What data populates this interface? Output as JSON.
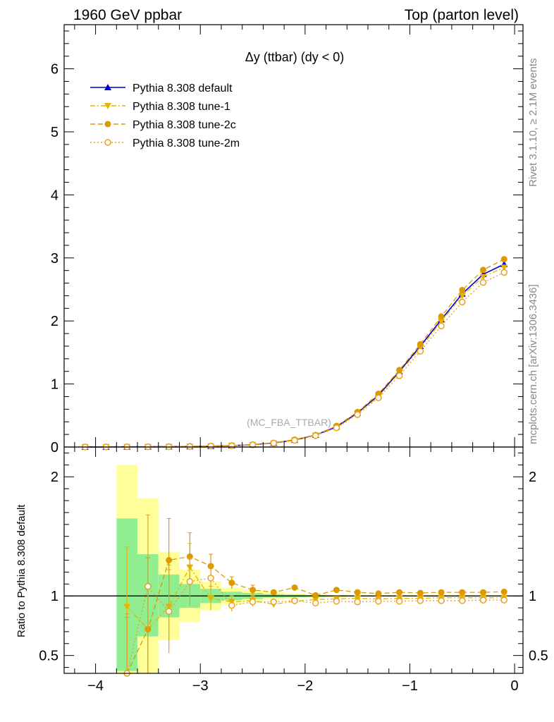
{
  "header": {
    "left": "1960 GeV ppbar",
    "right": "Top (parton level)"
  },
  "side_labels": {
    "rivet": "Rivet 3.1.10, ≥ 2.1M events",
    "mcplots": "mcplots.cern.ch [arXiv:1306.3436]"
  },
  "plot_title": "Δy (ttbar) (dy < 0)",
  "watermark": "(MC_FBA_TTBAR)",
  "ratio_ylabel": "Ratio to Pythia 8.308 default",
  "colors": {
    "default": "#0000cc",
    "tune1": "#e6b400",
    "tune2c": "#dd9900",
    "tune2m": "#e8a020",
    "band_green": "#90ee90",
    "band_yellow": "#ffff99"
  },
  "chart_data": [
    {
      "type": "line",
      "xlim": [
        -4.3,
        0.08
      ],
      "ylim": [
        0,
        6.7
      ],
      "yticks": [
        0,
        1,
        2,
        3,
        4,
        5,
        6
      ],
      "x": [
        -4.1,
        -3.9,
        -3.7,
        -3.5,
        -3.3,
        -3.1,
        -2.9,
        -2.7,
        -2.5,
        -2.3,
        -2.1,
        -1.9,
        -1.7,
        -1.5,
        -1.3,
        -1.1,
        -0.9,
        -0.7,
        -0.5,
        -0.3,
        -0.1
      ],
      "series": [
        {
          "name": "Pythia 8.308 default",
          "marker": "triangle-up",
          "dash": "solid",
          "values": [
            0.001,
            0.002,
            0.003,
            0.004,
            0.006,
            0.008,
            0.013,
            0.022,
            0.037,
            0.065,
            0.11,
            0.19,
            0.32,
            0.54,
            0.82,
            1.2,
            1.6,
            2.02,
            2.43,
            2.74,
            2.9
          ]
        },
        {
          "name": "Pythia 8.308 tune-1",
          "marker": "triangle-down",
          "dash": "dashdot",
          "values": [
            0.001,
            0.002,
            0.003,
            0.003,
            0.005,
            0.008,
            0.012,
            0.022,
            0.035,
            0.06,
            0.105,
            0.185,
            0.31,
            0.53,
            0.8,
            1.18,
            1.57,
            1.99,
            2.4,
            2.7,
            2.85
          ]
        },
        {
          "name": "Pythia 8.308 tune-2c",
          "marker": "circle",
          "dash": "dashed",
          "values": [
            0.001,
            0.002,
            0.003,
            0.003,
            0.008,
            0.011,
            0.016,
            0.024,
            0.039,
            0.066,
            0.118,
            0.19,
            0.335,
            0.555,
            0.845,
            1.22,
            1.63,
            2.07,
            2.49,
            2.81,
            2.98
          ]
        },
        {
          "name": "Pythia 8.308 tune-2m",
          "marker": "circle-open",
          "dash": "dotted",
          "values": [
            0.001,
            0.002,
            0.003,
            0.004,
            0.005,
            0.009,
            0.015,
            0.02,
            0.035,
            0.062,
            0.105,
            0.18,
            0.305,
            0.515,
            0.78,
            1.13,
            1.52,
            1.92,
            2.3,
            2.61,
            2.77
          ]
        }
      ]
    },
    {
      "type": "line",
      "ylabel": "Ratio to Pythia 8.308 default",
      "xlim": [
        -4.3,
        0.08
      ],
      "ylim": [
        0.35,
        2.25
      ],
      "xticks": [
        -4,
        -3,
        -2,
        -1,
        0
      ],
      "yticks": [
        0.5,
        1,
        2
      ],
      "bands": {
        "bins": [
          [
            -3.8,
            -3.6
          ],
          [
            -3.6,
            -3.4
          ],
          [
            -3.4,
            -3.2
          ],
          [
            -3.2,
            -3.0
          ],
          [
            -3.0,
            -2.8
          ],
          [
            -2.8,
            -2.6
          ],
          [
            -2.6,
            -2.4
          ],
          [
            -2.4,
            -2.2
          ],
          [
            -2.2,
            -2.0
          ],
          [
            -2.0,
            -1.8
          ],
          [
            -1.8,
            -1.6
          ],
          [
            -1.6,
            0.0
          ]
        ],
        "yellow": [
          [
            0.3,
            2.1
          ],
          [
            0.3,
            1.82
          ],
          [
            0.63,
            1.37
          ],
          [
            0.78,
            1.22
          ],
          [
            0.88,
            1.12
          ],
          [
            0.93,
            1.07
          ],
          [
            0.95,
            1.05
          ],
          [
            0.97,
            1.03
          ],
          [
            0.98,
            1.02
          ],
          [
            0.985,
            1.015
          ],
          [
            0.99,
            1.01
          ],
          [
            0.995,
            1.005
          ]
        ],
        "green": [
          [
            0.37,
            1.65
          ],
          [
            0.66,
            1.35
          ],
          [
            0.82,
            1.18
          ],
          [
            0.9,
            1.1
          ],
          [
            0.94,
            1.06
          ],
          [
            0.965,
            1.035
          ],
          [
            0.975,
            1.025
          ],
          [
            0.985,
            1.015
          ],
          [
            0.99,
            1.01
          ],
          [
            0.993,
            1.007
          ],
          [
            0.995,
            1.005
          ],
          [
            0.997,
            1.003
          ]
        ]
      },
      "x": [
        -3.7,
        -3.5,
        -3.3,
        -3.1,
        -2.9,
        -2.7,
        -2.5,
        -2.3,
        -2.1,
        -1.9,
        -1.7,
        -1.5,
        -1.3,
        -1.1,
        -0.9,
        -0.7,
        -0.5,
        -0.3,
        -0.1
      ],
      "series": [
        {
          "name": "Pythia 8.308 tune-1",
          "marker": "triangle-down",
          "dash": "dashdot",
          "values": [
            0.91,
            0.72,
            0.91,
            1.24,
            0.98,
            0.95,
            0.96,
            0.93,
            0.955,
            0.97,
            0.975,
            0.98,
            0.975,
            0.98,
            0.98,
            0.985,
            0.985,
            0.985,
            0.985
          ],
          "errors": [
            0.5,
            0.6,
            0.35,
            0.2,
            0.1,
            0.05,
            0.04,
            0.02,
            0.015,
            0.01,
            0.008,
            0.006,
            0.005,
            0.004,
            0.004,
            0.003,
            0.003,
            0.003,
            0.003
          ]
        },
        {
          "name": "Pythia 8.308 tune-2c",
          "marker": "circle",
          "dash": "dashed",
          "values": [
            0.32,
            0.72,
            1.3,
            1.33,
            1.25,
            1.11,
            1.05,
            1.03,
            1.07,
            1.005,
            1.05,
            1.03,
            1.02,
            1.03,
            1.025,
            1.03,
            1.03,
            1.03,
            1.035
          ],
          "errors": [
            0.5,
            0.6,
            0.35,
            0.2,
            0.1,
            0.05,
            0.04,
            0.02,
            0.015,
            0.01,
            0.008,
            0.006,
            0.005,
            0.004,
            0.004,
            0.003,
            0.003,
            0.003,
            0.003
          ]
        },
        {
          "name": "Pythia 8.308 tune-2m",
          "marker": "circle-open",
          "dash": "dotted",
          "values": [
            0.35,
            1.08,
            0.87,
            1.12,
            1.15,
            0.92,
            0.95,
            0.95,
            0.96,
            0.94,
            0.955,
            0.95,
            0.955,
            0.955,
            0.96,
            0.96,
            0.96,
            0.965,
            0.965
          ],
          "errors": [
            0.5,
            0.6,
            0.35,
            0.2,
            0.1,
            0.05,
            0.04,
            0.02,
            0.015,
            0.01,
            0.008,
            0.006,
            0.005,
            0.004,
            0.004,
            0.003,
            0.003,
            0.003,
            0.003
          ]
        }
      ]
    }
  ]
}
